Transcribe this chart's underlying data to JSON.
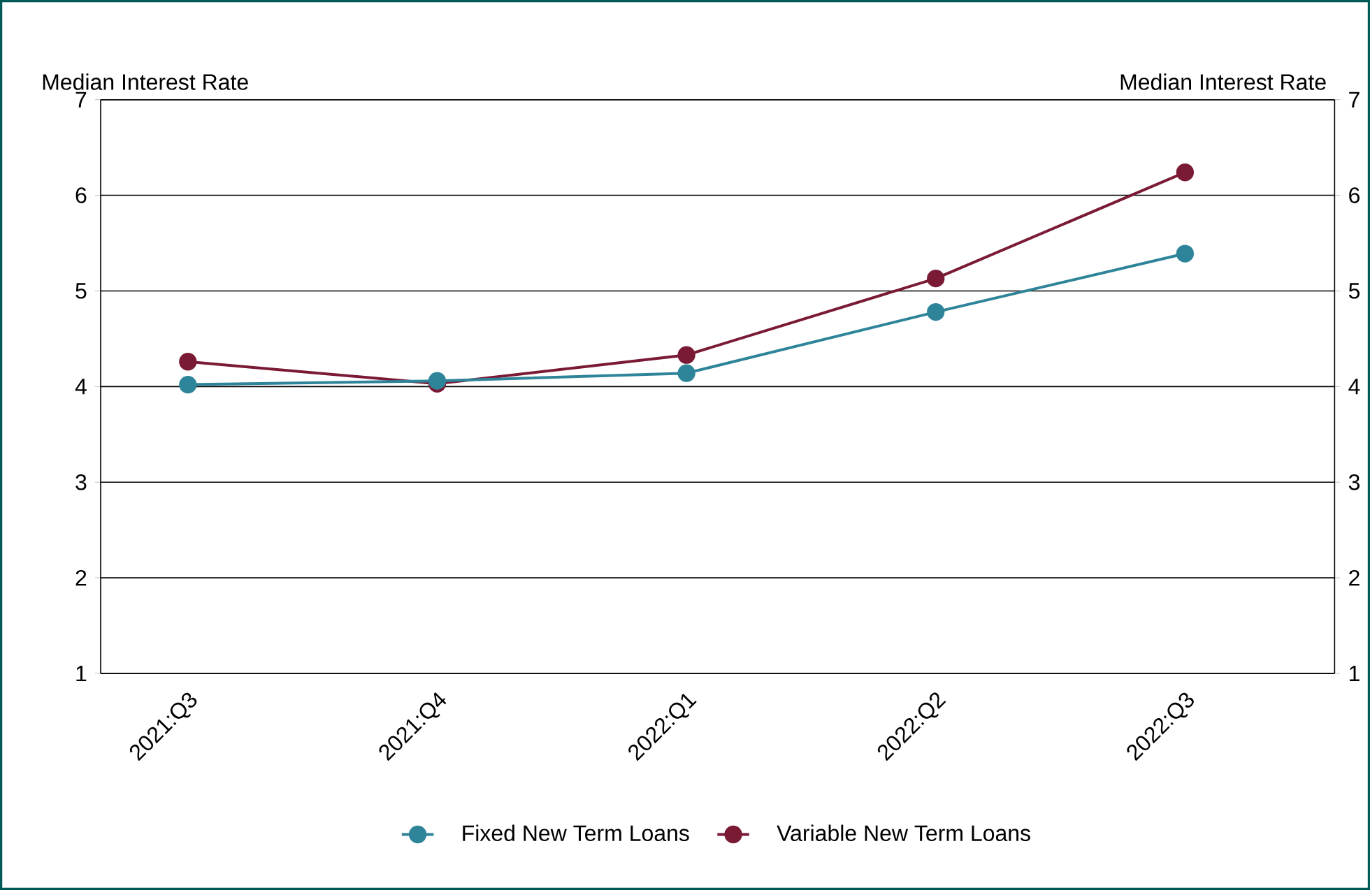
{
  "chart_data": {
    "type": "line",
    "ylabel": "Median Interest Rate",
    "y2label": "Median Interest Rate",
    "categories": [
      "2021:Q3",
      "2021:Q4",
      "2022:Q1",
      "2022:Q2",
      "2022:Q3"
    ],
    "series": [
      {
        "name": "Fixed New Term Loans",
        "color": "#2e8499",
        "values": [
          4.02,
          4.06,
          4.14,
          4.78,
          5.39
        ]
      },
      {
        "name": "Variable New Term Loans",
        "color": "#7a1a35",
        "values": [
          4.26,
          4.03,
          4.33,
          5.13,
          6.24
        ]
      }
    ],
    "ylim": [
      1,
      7
    ],
    "yticks": [
      1,
      2,
      3,
      4,
      5,
      6,
      7
    ],
    "y2lim": [
      1,
      7
    ],
    "y2ticks": [
      1,
      2,
      3,
      4,
      5,
      6,
      7
    ],
    "grid": "y",
    "legend": "bottom",
    "marker": "circle",
    "line_style": "solid"
  }
}
